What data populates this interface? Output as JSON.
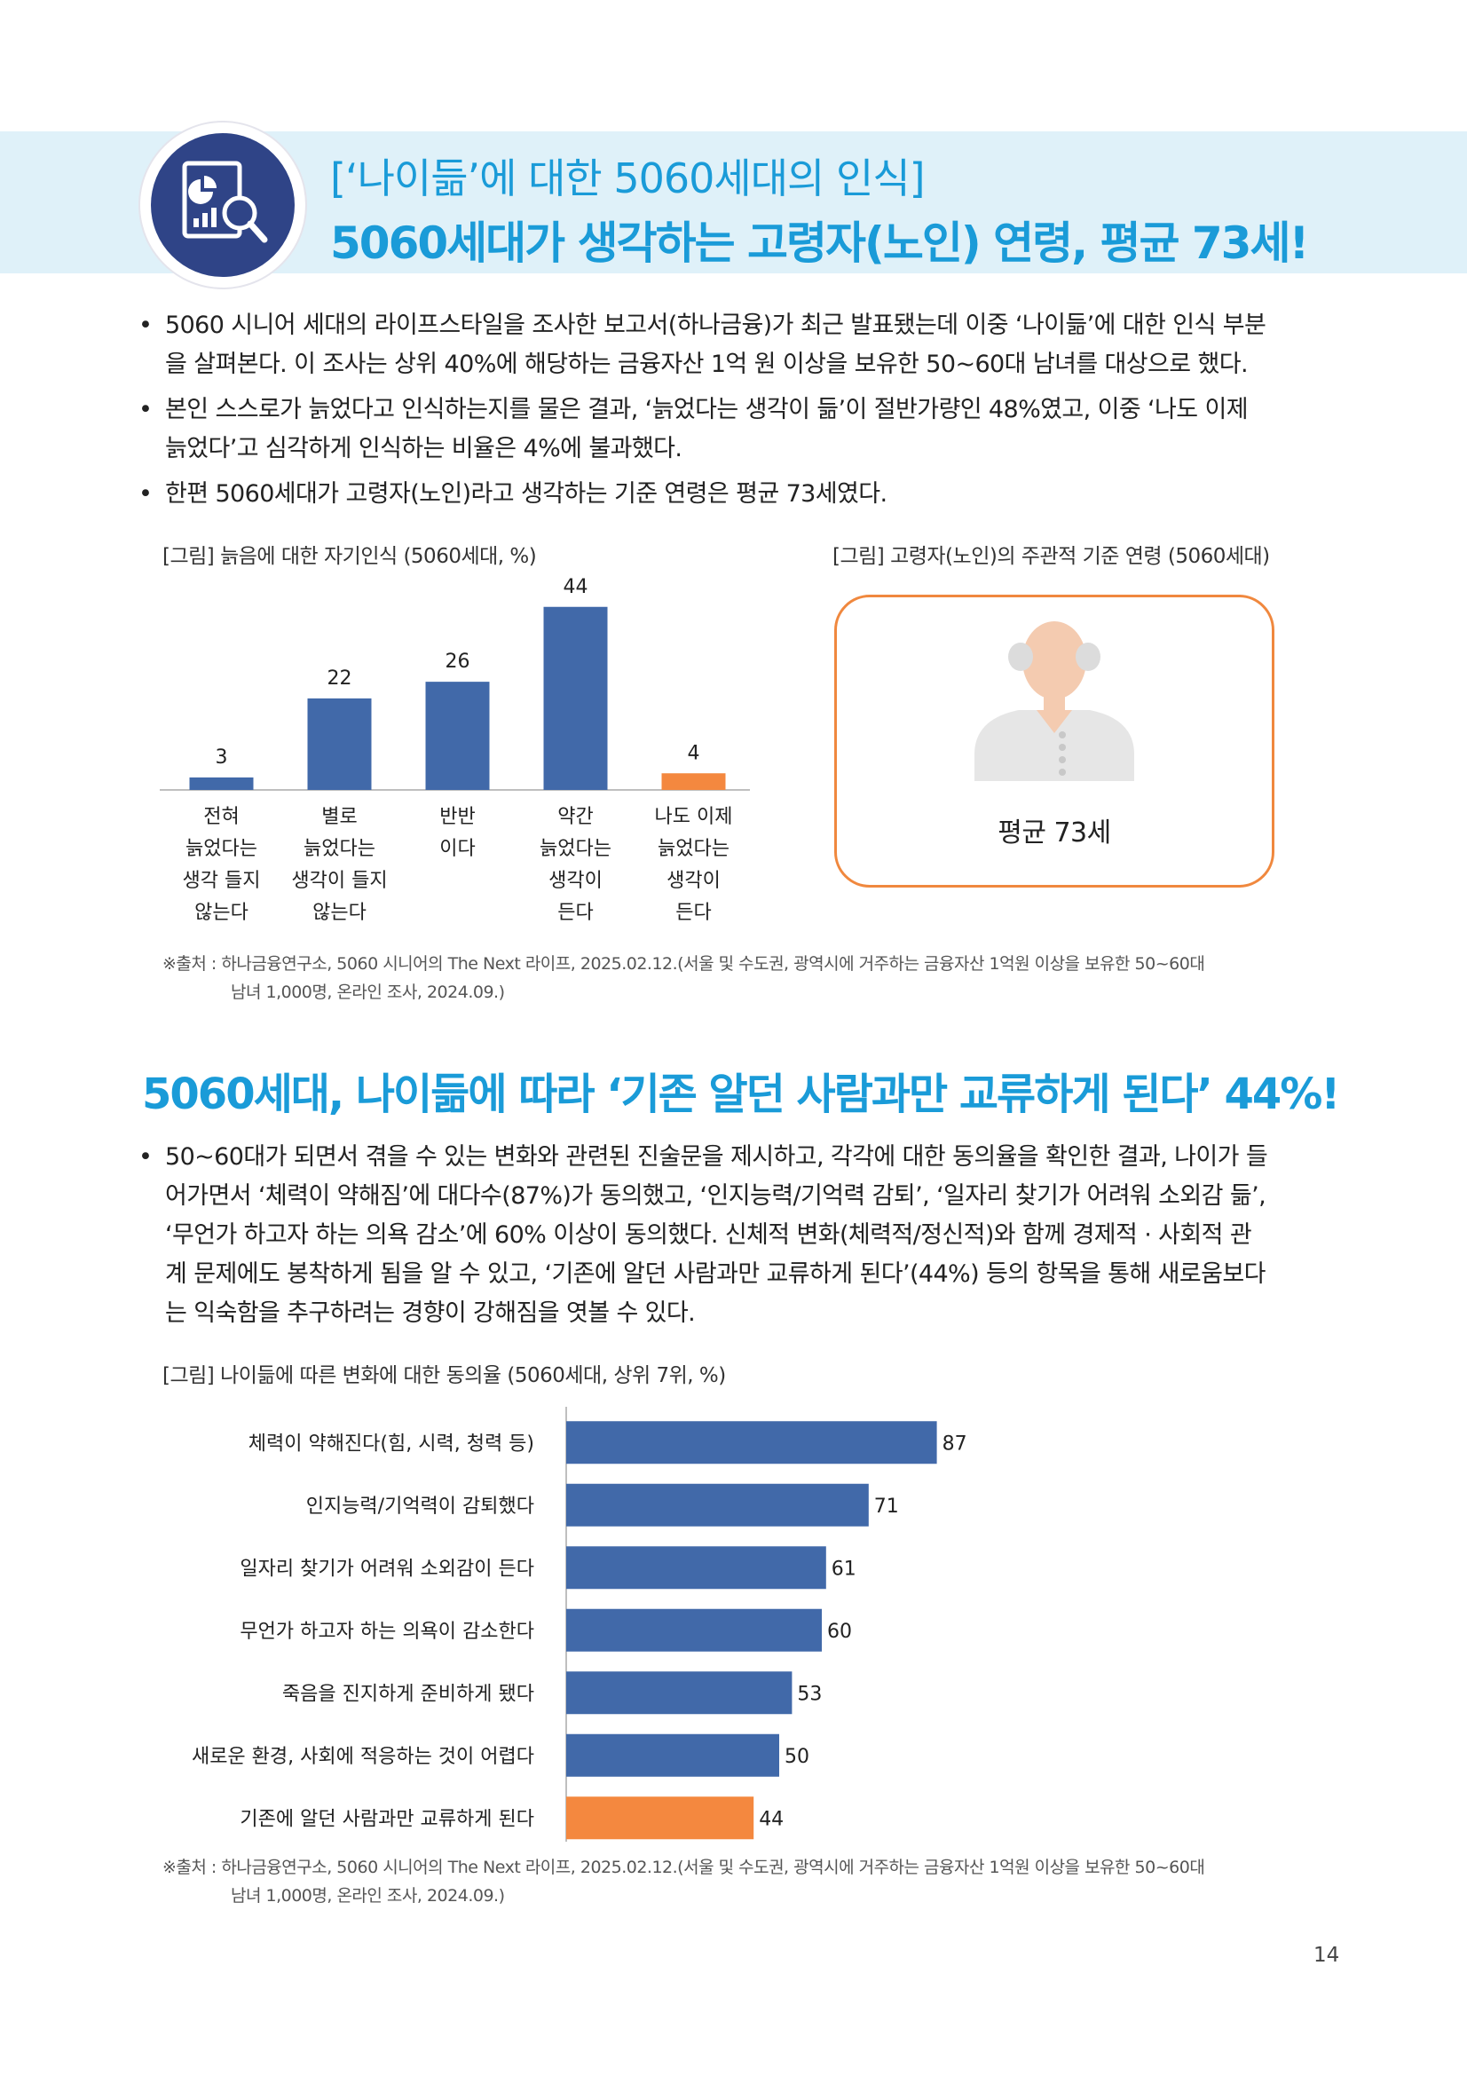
{
  "header": {
    "title_line1": "[‘나이듦’에 대한 5060세대의 인식]",
    "title_line2": "5060세대가 생각하는 고령자(노인) 연령, 평균 73세!",
    "icon": "report-magnifier-icon"
  },
  "intro_bullets": [
    {
      "lines": [
        "5060 시니어 세대의 라이프스타일을 조사한 보고서(하나금융)가 최근 발표됐는데 이중 ‘나이듦’에 대한 인식 부분",
        "을 살펴본다. 이 조사는 상위 40%에 해당하는 금융자산 1억 원 이상을 보유한 50~60대 남녀를 대상으로 했다."
      ]
    },
    {
      "lines": [
        "본인 스스로가 늙었다고 인식하는지를 물은 결과, ‘늙었다는 생각이 듦’이 절반가량인 48%였고, 이중 ‘나도 이제",
        "늙었다’고 심각하게 인식하는 비율은 4%에 불과했다."
      ]
    },
    {
      "lines": [
        "한편 5060세대가 고령자(노인)라고 생각하는 기준 연령은 평균 73세였다."
      ]
    }
  ],
  "bullet_symbol": "•",
  "chart_data": [
    {
      "type": "bar",
      "title": "[그림] 늙음에 대한 자기인식 (5060세대, %)",
      "categories": [
        [
          "전혀",
          "늙었다는",
          "생각 들지",
          "않는다"
        ],
        [
          "별로",
          "늙었다는",
          "생각이 들지",
          "않는다"
        ],
        [
          "반반",
          "이다"
        ],
        [
          "약간",
          "늙었다는",
          "생각이",
          "든다"
        ],
        [
          "나도 이제",
          "늙었다는",
          "생각이",
          "든다"
        ]
      ],
      "values": [
        3,
        22,
        26,
        44,
        4
      ],
      "colors": [
        "#4169a9",
        "#4169a9",
        "#4169a9",
        "#4169a9",
        "#f4883f"
      ],
      "ylim": [
        0,
        48
      ],
      "grid": false,
      "legend": "none"
    },
    {
      "type": "bar",
      "orientation": "horizontal",
      "title": "[그림] 나이듦에 따른 변화에 대한 동의율 (5060세대, 상위 7위, %)",
      "categories": [
        "체력이 약해진다(힘, 시력, 청력 등)",
        "인지능력/기억력이 감퇴했다",
        "일자리 찾기가 어려워 소외감이 든다",
        "무언가 하고자 하는 의욕이 감소한다",
        "죽음을 진지하게 준비하게 됐다",
        "새로운 환경, 사회에 적응하는 것이 어렵다",
        "기존에 알던 사람과만 교류하게 된다"
      ],
      "values": [
        87,
        71,
        61,
        60,
        53,
        50,
        44
      ],
      "colors": [
        "#4169a9",
        "#4169a9",
        "#4169a9",
        "#4169a9",
        "#4169a9",
        "#4169a9",
        "#f4883f"
      ],
      "xlim": [
        0,
        100
      ],
      "grid": false,
      "legend": "none"
    }
  ],
  "age_panel": {
    "caption": "[그림] 고령자(노인)의 주관적 기준 연령 (5060세대)",
    "icon": "elderly-man-icon",
    "value_text": "평균 73세"
  },
  "source_note": {
    "lines": [
      "※출처 : 하나금융연구소, 5060 시니어의 The Next 라이프, 2025.02.12.(서울 및 수도권, 광역시에 거주하는 금융자산 1억원 이상을 보유한 50~60대",
      "남녀 1,000명, 온라인 조사, 2024.09.)"
    ]
  },
  "section2": {
    "title": "5060세대, 나이듦에 따라 ‘기존 알던 사람과만 교류하게 된다’ 44%!",
    "bullet_lines": [
      "50~60대가 되면서 겪을 수 있는 변화와 관련된 진술문을 제시하고, 각각에 대한 동의율을 확인한 결과, 나이가 들",
      "어가면서 ‘체력이 약해짐’에 대다수(87%)가 동의했고, ‘인지능력/기억력 감퇴’, ‘일자리 찾기가 어려워 소외감 듦’,",
      "‘무언가 하고자 하는 의욕 감소’에 60% 이상이 동의했다. 신체적 변화(체력적/정신적)와 함께 경제적 · 사회적 관",
      "계 문제에도 봉착하게 됨을 알 수 있고, ‘기존에 알던 사람과만 교류하게 된다’(44%) 등의 항목을 통해 새로움보다",
      "는 익숙함을 추구하려는 경향이 강해짐을 엿볼 수 있다."
    ]
  },
  "page_number": "14"
}
